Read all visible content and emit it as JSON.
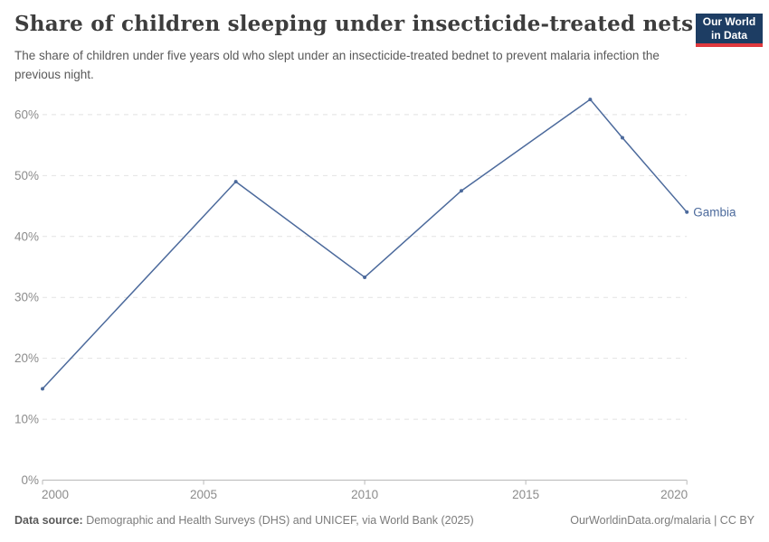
{
  "header": {
    "title": "Share of children sleeping under insecticide-treated nets",
    "subtitle": "The share of children under five years old who slept under an insecticide-treated bednet to prevent malaria infection the previous night.",
    "logo": {
      "line1": "Our World",
      "line2": "in Data",
      "bg_color": "#1d3d63",
      "accent_color": "#e0393e"
    }
  },
  "chart_data": {
    "type": "line",
    "title": "Share of children sleeping under insecticide-treated nets",
    "xlabel": "",
    "ylabel": "",
    "xlim": [
      2000,
      2020
    ],
    "ylim": [
      0,
      65
    ],
    "grid": "horizontal dashed",
    "legend_position": "end-of-line label",
    "x_ticks": [
      {
        "value": 2000,
        "label": "2000"
      },
      {
        "value": 2005,
        "label": "2005"
      },
      {
        "value": 2010,
        "label": "2010"
      },
      {
        "value": 2015,
        "label": "2015"
      },
      {
        "value": 2020,
        "label": "2020"
      }
    ],
    "y_ticks": [
      {
        "value": 0,
        "label": "0%"
      },
      {
        "value": 10,
        "label": "10%"
      },
      {
        "value": 20,
        "label": "20%"
      },
      {
        "value": 30,
        "label": "30%"
      },
      {
        "value": 40,
        "label": "40%"
      },
      {
        "value": 50,
        "label": "50%"
      },
      {
        "value": 60,
        "label": "60%"
      }
    ],
    "series": [
      {
        "name": "Gambia",
        "color": "#4c6a9c",
        "x": [
          2000,
          2006,
          2010,
          2013,
          2017,
          2018,
          2020
        ],
        "values": [
          15,
          49,
          33.3,
          47.5,
          62.5,
          56.2,
          44
        ]
      }
    ],
    "colors": {
      "gridline": "#e2e2e2",
      "axis": "#b9b9b9",
      "tick_label": "#8c8c8c"
    }
  },
  "footer": {
    "source_label": "Data source:",
    "source_text": " Demographic and Health Surveys (DHS) and UNICEF, via World Bank (2025)",
    "rights": "OurWorldinData.org/malaria | CC BY"
  }
}
